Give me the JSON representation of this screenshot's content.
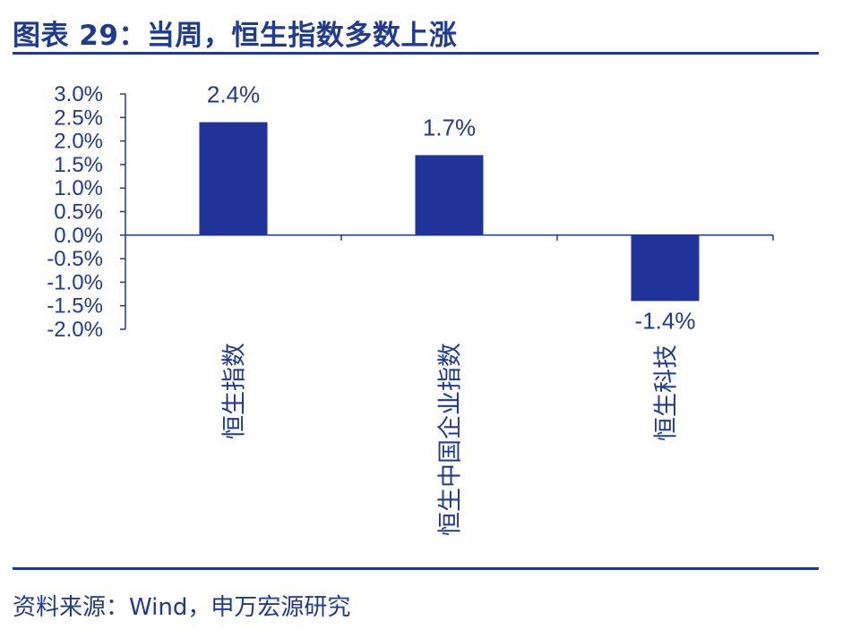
{
  "header": {
    "title": "图表 29：当周，恒生指数多数上涨"
  },
  "footer": {
    "source": "资料来源：Wind，申万宏源研究"
  },
  "chart_data": {
    "type": "bar",
    "categories": [
      "恒生指数",
      "恒生中国企业指数",
      "恒生科技"
    ],
    "values": [
      2.4,
      1.7,
      -1.4
    ],
    "data_labels": [
      "2.4%",
      "1.7%",
      "-1.4%"
    ],
    "ylim": [
      -2.0,
      3.0
    ],
    "ytick_values": [
      3.0,
      2.5,
      2.0,
      1.5,
      1.0,
      0.5,
      0.0,
      -0.5,
      -1.0,
      -1.5,
      -2.0
    ],
    "ytick_labels": [
      "3.0%",
      "2.5%",
      "2.0%",
      "1.5%",
      "1.0%",
      "0.5%",
      "0.0%",
      "-0.5%",
      "-1.0%",
      "-1.5%",
      "-2.0%"
    ],
    "xlabel": "",
    "ylabel": "",
    "legend": "none",
    "grid": false,
    "bar_color": "#1F3399",
    "axis_color": "#1F3A93"
  }
}
